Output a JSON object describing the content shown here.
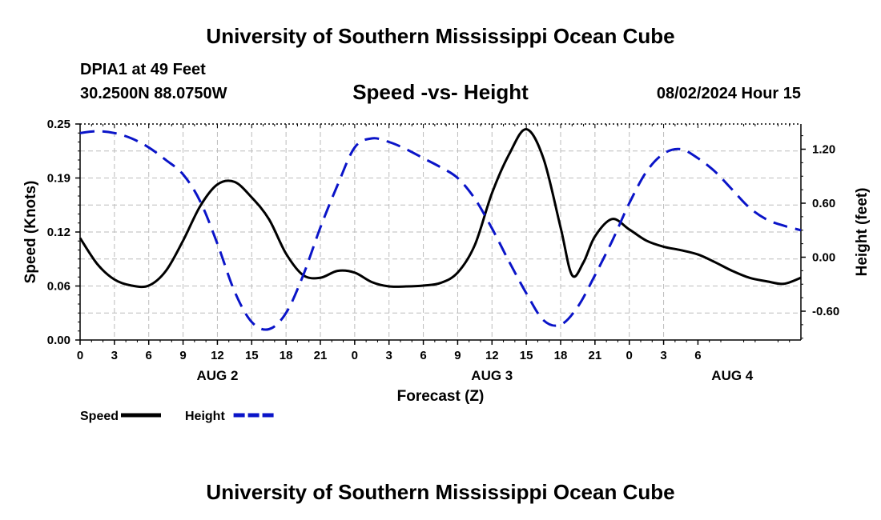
{
  "header": {
    "title": "University of Southern Mississippi Ocean Cube",
    "station": "DPIA1 at 49 Feet",
    "coords": "30.2500N  88.0750W",
    "date": "08/02/2024 Hour 15"
  },
  "footer": {
    "title": "University of Southern Mississippi Ocean Cube"
  },
  "chart_data": {
    "type": "line",
    "title": "Speed -vs- Height",
    "xlabel": "Forecast (Z)",
    "ylabel_left": "Speed (Knots)",
    "ylabel_right": "Height (feet)",
    "x_range_hours": [
      0,
      63
    ],
    "x_ticks": [
      "0",
      "3",
      "6",
      "9",
      "12",
      "15",
      "18",
      "21",
      "0",
      "3",
      "6",
      "9",
      "12",
      "15",
      "18",
      "21",
      "0",
      "3",
      "6"
    ],
    "date_labels": [
      {
        "label": "AUG 2",
        "hour": 12
      },
      {
        "label": "AUG 3",
        "hour": 36
      },
      {
        "label": "AUG 4",
        "hour": 57
      }
    ],
    "y_left": {
      "range": [
        0,
        0.25
      ],
      "ticks": [
        "0.00",
        "0.06",
        "0.12",
        "0.19",
        "0.25"
      ]
    },
    "y_right": {
      "range": [
        -0.92,
        1.48
      ],
      "ticks": [
        "-0.60",
        "0.00",
        "0.60",
        "1.20"
      ]
    },
    "legend": [
      {
        "name": "Speed",
        "color": "#000000",
        "dash": false
      },
      {
        "name": "Height",
        "color": "#0a14c8",
        "dash": true
      }
    ],
    "series": [
      {
        "name": "Speed",
        "axis": "left",
        "color": "#000000",
        "x": [
          0,
          1.5,
          3,
          4.5,
          6,
          7.5,
          9,
          10.5,
          12,
          13.5,
          15,
          16.5,
          18,
          19.5,
          21,
          22.5,
          24,
          25.5,
          27,
          28.5,
          30,
          31.5,
          33,
          34.5,
          36,
          37.5,
          39,
          40.5,
          42,
          43,
          44,
          45,
          46.5,
          48,
          49.5,
          51,
          52.5,
          54,
          55.5,
          57,
          58.5,
          60,
          61.5,
          63
        ],
        "values": [
          0.118,
          0.088,
          0.07,
          0.063,
          0.063,
          0.08,
          0.115,
          0.155,
          0.18,
          0.183,
          0.165,
          0.14,
          0.1,
          0.075,
          0.072,
          0.08,
          0.078,
          0.067,
          0.062,
          0.062,
          0.063,
          0.066,
          0.078,
          0.11,
          0.17,
          0.215,
          0.244,
          0.21,
          0.13,
          0.075,
          0.09,
          0.12,
          0.14,
          0.128,
          0.115,
          0.108,
          0.104,
          0.099,
          0.09,
          0.08,
          0.072,
          0.068,
          0.065,
          0.072
        ]
      },
      {
        "name": "Height",
        "axis": "right",
        "color": "#0a14c8",
        "x": [
          0,
          1.5,
          3,
          4.5,
          6,
          7.5,
          9,
          10.5,
          12,
          13.5,
          15,
          16.5,
          18,
          19.5,
          21,
          22.5,
          24,
          25.5,
          27,
          28.5,
          30,
          31.5,
          33,
          34.5,
          36,
          37.5,
          39,
          40.5,
          42,
          43.5,
          45,
          46.5,
          48,
          49.5,
          51,
          52.5,
          54,
          55.5,
          57,
          58.5,
          60,
          61.5,
          63
        ],
        "values": [
          1.38,
          1.4,
          1.38,
          1.32,
          1.22,
          1.08,
          0.92,
          0.62,
          0.15,
          -0.38,
          -0.72,
          -0.8,
          -0.62,
          -0.2,
          0.33,
          0.8,
          1.22,
          1.32,
          1.28,
          1.2,
          1.1,
          1.0,
          0.88,
          0.65,
          0.32,
          -0.05,
          -0.4,
          -0.7,
          -0.75,
          -0.55,
          -0.2,
          0.18,
          0.6,
          0.95,
          1.15,
          1.2,
          1.1,
          0.95,
          0.75,
          0.55,
          0.42,
          0.35,
          0.3
        ]
      }
    ]
  }
}
